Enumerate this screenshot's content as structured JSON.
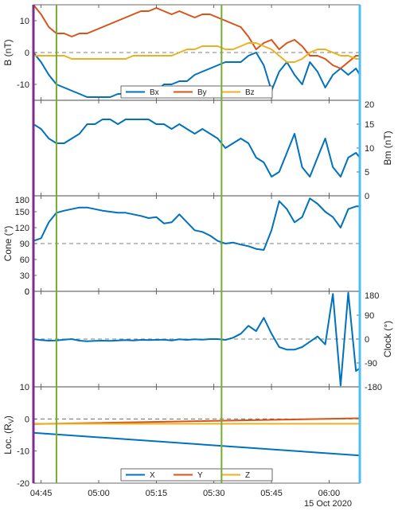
{
  "figure": {
    "date_label": "15 Oct 2020",
    "time_ticks": [
      "04:45",
      "05:00",
      "05:15",
      "05:30",
      "05:45",
      "06:00"
    ],
    "time_tick_minutes": [
      0,
      15,
      30,
      45,
      60,
      75
    ],
    "time_range_minutes": [
      -2,
      83
    ],
    "vertical_markers_minutes": [
      4,
      47
    ],
    "colors": {
      "blue": "#0072bd",
      "red": "#d95319",
      "yellow": "#edb120",
      "green": "#77ac30",
      "purple": "#7e2f8e",
      "cyan": "#4dbeee",
      "dashed": "#555555"
    }
  },
  "chart_data": [
    {
      "type": "line",
      "panel": "B",
      "ylabel": "B (nT)",
      "ylim": [
        -15,
        15
      ],
      "yticks": [
        -10,
        0,
        10
      ],
      "legend": {
        "entries": [
          "Bx",
          "By",
          "Bz"
        ],
        "placement": "bottom-center"
      },
      "reference_line": 0,
      "x": [
        -2,
        0,
        2,
        4,
        6,
        8,
        10,
        12,
        14,
        16,
        18,
        20,
        22,
        24,
        26,
        28,
        30,
        32,
        34,
        36,
        38,
        40,
        42,
        44,
        46,
        48,
        50,
        52,
        54,
        56,
        58,
        60,
        62,
        64,
        66,
        68,
        70,
        72,
        74,
        76,
        78,
        80,
        82,
        83
      ],
      "series": [
        {
          "name": "Bx",
          "color": "blue",
          "values": [
            0,
            -3,
            -7,
            -10,
            -11,
            -12,
            -13,
            -14,
            -14,
            -14,
            -14,
            -13,
            -13,
            -13,
            -12,
            -11,
            -12,
            -10,
            -10,
            -9,
            -9,
            -7,
            -6,
            -5,
            -4,
            -3,
            -3,
            -3,
            -1,
            0,
            -4,
            -12,
            -6,
            -3,
            -7,
            -10,
            -3,
            -6,
            -11,
            -7,
            -5,
            -7,
            -5,
            -7
          ]
        },
        {
          "name": "By",
          "color": "red",
          "values": [
            15,
            12,
            8,
            6,
            6,
            5,
            6,
            6,
            7,
            8,
            9,
            10,
            11,
            12,
            13,
            13,
            14,
            13,
            12,
            13,
            12,
            11,
            12,
            12,
            11,
            10,
            9,
            8,
            5,
            1,
            3,
            4,
            1,
            3,
            4,
            2,
            -1,
            -1,
            -2,
            -4,
            -5,
            -3,
            -1,
            -1
          ]
        },
        {
          "name": "Bz",
          "color": "yellow",
          "values": [
            -1,
            -1,
            -1,
            -1,
            -1,
            -2,
            -2,
            -2,
            -2,
            -2,
            -2,
            -2,
            -2,
            -1,
            -1,
            -1,
            -1,
            -1,
            -1,
            0,
            1,
            1,
            2,
            2,
            2,
            1,
            1,
            2,
            3,
            3,
            2,
            1,
            -1,
            -3,
            -3,
            -2,
            0,
            1,
            1,
            0,
            -1,
            -1,
            -2,
            -2
          ]
        }
      ]
    },
    {
      "type": "line",
      "panel": "Bm",
      "ylabel": "Bm (nT)",
      "ylabel_side": "right",
      "ylim": [
        0,
        20
      ],
      "yticks": [
        0,
        5,
        10,
        15,
        20
      ],
      "x": [
        -2,
        0,
        2,
        4,
        6,
        8,
        10,
        12,
        14,
        16,
        18,
        20,
        22,
        24,
        26,
        28,
        30,
        32,
        34,
        36,
        38,
        40,
        42,
        44,
        46,
        48,
        50,
        52,
        54,
        56,
        58,
        60,
        62,
        64,
        66,
        68,
        70,
        72,
        74,
        76,
        78,
        80,
        82,
        83
      ],
      "series": [
        {
          "color": "blue",
          "values": [
            15,
            14,
            12,
            11,
            11,
            12,
            13,
            15,
            15,
            16,
            16,
            15,
            16,
            16,
            16,
            16,
            15,
            15,
            14,
            15,
            14,
            13,
            14,
            13,
            12,
            10,
            11,
            12,
            11,
            8,
            7,
            4,
            5,
            9,
            13,
            6,
            4,
            8,
            12,
            6,
            4,
            8,
            9,
            8
          ]
        }
      ]
    },
    {
      "type": "line",
      "panel": "Cone",
      "ylabel": "Cone (°)",
      "ylim": [
        0,
        180
      ],
      "yticks": [
        0,
        30,
        60,
        90,
        120,
        150,
        180
      ],
      "reference_line": 90,
      "x": [
        -2,
        0,
        2,
        4,
        6,
        8,
        10,
        12,
        14,
        16,
        18,
        20,
        22,
        24,
        26,
        28,
        30,
        32,
        34,
        36,
        38,
        40,
        42,
        44,
        46,
        48,
        50,
        52,
        54,
        56,
        58,
        60,
        62,
        64,
        66,
        68,
        70,
        72,
        74,
        76,
        78,
        80,
        82,
        83
      ],
      "series": [
        {
          "color": "blue",
          "values": [
            95,
            100,
            130,
            148,
            152,
            155,
            158,
            158,
            155,
            152,
            150,
            148,
            148,
            145,
            142,
            138,
            140,
            128,
            130,
            145,
            130,
            115,
            112,
            105,
            95,
            90,
            92,
            88,
            85,
            80,
            78,
            115,
            170,
            155,
            130,
            140,
            175,
            165,
            150,
            140,
            120,
            155,
            160,
            160
          ]
        }
      ]
    },
    {
      "type": "line",
      "panel": "Clock",
      "ylabel": "Clock (°)",
      "ylabel_side": "right",
      "ylim": [
        -180,
        180
      ],
      "yticks": [
        -180,
        -90,
        0,
        90,
        180
      ],
      "left_ticks": [
        "0",
        "10"
      ],
      "reference_line": 0,
      "x": [
        -2,
        0,
        2,
        4,
        6,
        8,
        10,
        12,
        14,
        16,
        18,
        20,
        22,
        24,
        26,
        28,
        30,
        32,
        34,
        36,
        38,
        40,
        42,
        44,
        46,
        48,
        50,
        52,
        54,
        56,
        58,
        60,
        62,
        64,
        66,
        68,
        70,
        72,
        74,
        76,
        78,
        80,
        82,
        83
      ],
      "series": [
        {
          "color": "blue",
          "values": [
            0,
            -4,
            -6,
            -5,
            -2,
            0,
            -6,
            -8,
            -7,
            -6,
            -7,
            -5,
            -4,
            -5,
            -3,
            -4,
            -3,
            -2,
            -5,
            -1,
            -3,
            -1,
            -2,
            0,
            0,
            -3,
            5,
            20,
            50,
            30,
            80,
            20,
            -30,
            -40,
            -40,
            -30,
            -10,
            10,
            -20,
            170,
            -175,
            175,
            -120,
            -110
          ]
        }
      ]
    },
    {
      "type": "line",
      "panel": "Loc",
      "ylabel": "Loc. (R",
      "ylabel_sub": "V",
      "ylabel_end": ")",
      "ylim": [
        -20,
        10
      ],
      "yticks": [
        -20,
        -10,
        0
      ],
      "legend": {
        "entries": [
          "X",
          "Y",
          "Z"
        ],
        "placement": "bottom-center"
      },
      "reference_line": 0,
      "x": [
        -2,
        83
      ],
      "series": [
        {
          "name": "X",
          "color": "blue",
          "values": [
            -4.3,
            -11.4
          ]
        },
        {
          "name": "Y",
          "color": "red",
          "values": [
            -1.6,
            0.2
          ]
        },
        {
          "name": "Z",
          "color": "yellow",
          "values": [
            -1.5,
            -1.5
          ]
        }
      ]
    }
  ]
}
